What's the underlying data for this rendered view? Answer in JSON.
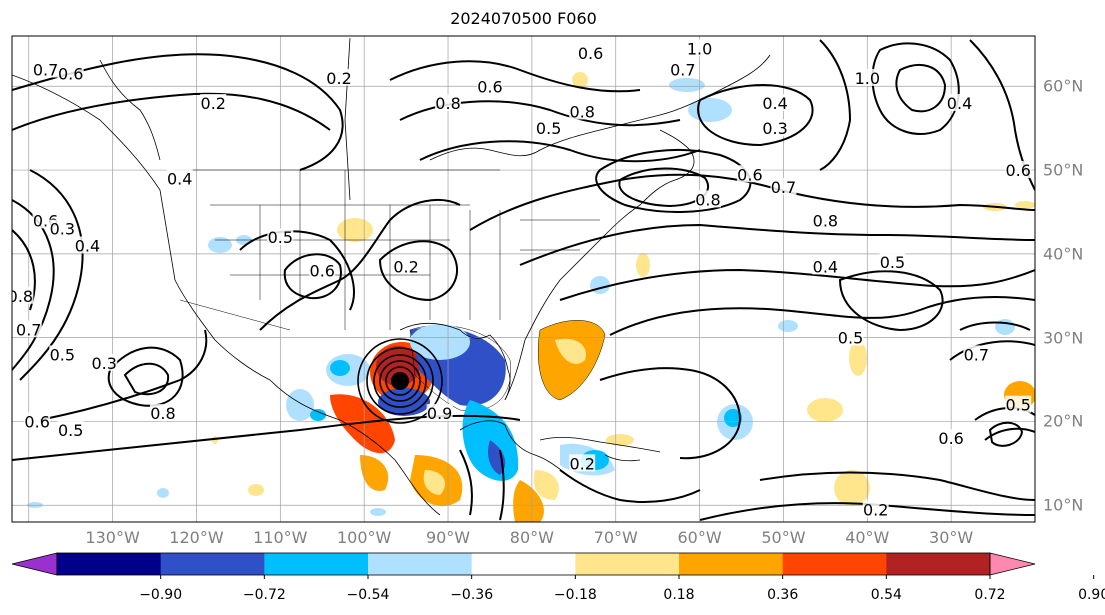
{
  "title": "2024070500 F060",
  "map": {
    "projection": "cylindrical",
    "lon_range": [
      -142,
      -20
    ],
    "lat_range": [
      8,
      66
    ],
    "coastlines": true,
    "state_borders": true,
    "gridlines": true
  },
  "lon_labels": [
    "130°W",
    "120°W",
    "110°W",
    "100°W",
    "90°W",
    "80°W",
    "70°W",
    "60°W",
    "50°W",
    "40°W",
    "30°W"
  ],
  "lat_labels": [
    "60°N",
    "50°N",
    "40°N",
    "30°N",
    "20°N",
    "10°N"
  ],
  "colorbar": {
    "ticks": [
      "−0.90",
      "−0.72",
      "−0.54",
      "−0.36",
      "−0.18",
      "0.18",
      "0.36",
      "0.54",
      "0.72",
      "0.90"
    ],
    "colors": [
      "#9b30d0",
      "#00008b",
      "#3050c8",
      "#00bfff",
      "#b0e0ff",
      "#ffffff",
      "#ffe68c",
      "#ffa500",
      "#ff4500",
      "#b22222",
      "#ff88b0"
    ],
    "extend": "both"
  },
  "contour_labels": [
    {
      "text": "0.7",
      "lon": -138,
      "lat": 62
    },
    {
      "text": "0.6",
      "lon": -135,
      "lat": 61.5
    },
    {
      "text": "0.2",
      "lon": -118,
      "lat": 58
    },
    {
      "text": "0.4",
      "lon": -122,
      "lat": 49
    },
    {
      "text": "0.6",
      "lon": -138,
      "lat": 44
    },
    {
      "text": "0.3",
      "lon": -136,
      "lat": 43
    },
    {
      "text": "0.4",
      "lon": -133,
      "lat": 41
    },
    {
      "text": "0.2",
      "lon": -103,
      "lat": 61
    },
    {
      "text": "0.8",
      "lon": -90,
      "lat": 58
    },
    {
      "text": "0.6",
      "lon": -85,
      "lat": 60
    },
    {
      "text": "0.5",
      "lon": -78,
      "lat": 55
    },
    {
      "text": "0.8",
      "lon": -74,
      "lat": 57
    },
    {
      "text": "0.6",
      "lon": -73,
      "lat": 64
    },
    {
      "text": "1.0",
      "lon": -60,
      "lat": 64.5
    },
    {
      "text": "0.7",
      "lon": -62,
      "lat": 62
    },
    {
      "text": "0.4",
      "lon": -51,
      "lat": 58
    },
    {
      "text": "0.3",
      "lon": -51,
      "lat": 55
    },
    {
      "text": "0.6",
      "lon": -54,
      "lat": 49.5
    },
    {
      "text": "0.7",
      "lon": -50,
      "lat": 48
    },
    {
      "text": "0.8",
      "lon": -59,
      "lat": 46.5
    },
    {
      "text": "1.0",
      "lon": -40,
      "lat": 61
    },
    {
      "text": "0.4",
      "lon": -29,
      "lat": 58
    },
    {
      "text": "0.6",
      "lon": -22,
      "lat": 50
    },
    {
      "text": "0.8",
      "lon": -45,
      "lat": 44
    },
    {
      "text": "0.4",
      "lon": -45,
      "lat": 38.5
    },
    {
      "text": "0.5",
      "lon": -37,
      "lat": 39
    },
    {
      "text": "0.6",
      "lon": -105,
      "lat": 38
    },
    {
      "text": "0.2",
      "lon": -95,
      "lat": 38.5
    },
    {
      "text": "0.5",
      "lon": -110,
      "lat": 42
    },
    {
      "text": "0.8",
      "lon": -141,
      "lat": 35
    },
    {
      "text": "0.7",
      "lon": -140,
      "lat": 31
    },
    {
      "text": "0.5",
      "lon": -136,
      "lat": 28
    },
    {
      "text": "0.3",
      "lon": -131,
      "lat": 27
    },
    {
      "text": "0.8",
      "lon": -124,
      "lat": 21
    },
    {
      "text": "0.6",
      "lon": -139,
      "lat": 20
    },
    {
      "text": "0.5",
      "lon": -135,
      "lat": 19
    },
    {
      "text": "0.5",
      "lon": -42,
      "lat": 30
    },
    {
      "text": "0.7",
      "lon": -27,
      "lat": 28
    },
    {
      "text": "0.5",
      "lon": -22,
      "lat": 22
    },
    {
      "text": "0.6",
      "lon": -30,
      "lat": 18
    },
    {
      "text": "0.2",
      "lon": -39,
      "lat": 9.5
    },
    {
      "text": "0.2",
      "lon": -74,
      "lat": 15
    },
    {
      "text": "0.9",
      "lon": -91,
      "lat": 21
    }
  ],
  "storm_center": {
    "lon": -95,
    "lat": 24.5
  }
}
